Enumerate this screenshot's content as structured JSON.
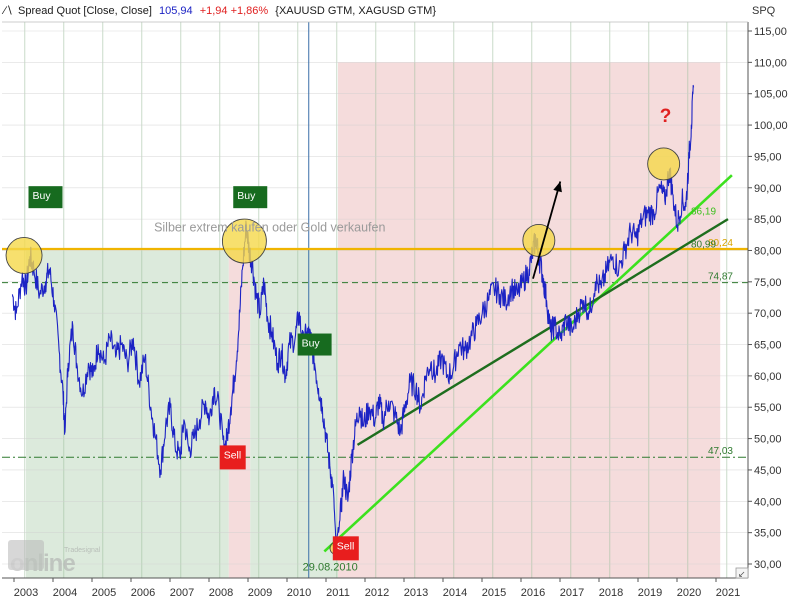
{
  "header": {
    "chart_icon": "line-chart-icon",
    "title": "Spread Quot [Close, Close]",
    "last_value": "105,94",
    "change": "+1,94 +1,86%",
    "symbols": "{XAUUSD GTM, XAGUSD GTM}"
  },
  "axis_unit_label": "SPQ",
  "watermark": {
    "brand_top": "Tradesignal",
    "brand_main": "online"
  },
  "colors": {
    "price_line": "#1c23c4",
    "green_zone": "#d6e6d6",
    "red_zone": "#f3d6d6",
    "buy_label_bg": "#176b1f",
    "sell_label_bg": "#e81e1e",
    "level_line": "#f0b400",
    "trend_light": "#3ce11e",
    "trend_dark": "#1e6e1e",
    "circle_fill": "#f5d84a",
    "question_mark": "#e02020",
    "axis_text": "#333333"
  },
  "chart_data": {
    "type": "line",
    "title": "Spread Quot [Close, Close]",
    "xlabel": "",
    "ylabel": "SPQ",
    "ylim": [
      28,
      118
    ],
    "x_ticks": [
      "2003",
      "2004",
      "2005",
      "2006",
      "2007",
      "2008",
      "2009",
      "2010",
      "2011",
      "2012",
      "2013",
      "2014",
      "2015",
      "2016",
      "2017",
      "2018",
      "2019",
      "2020",
      "2021"
    ],
    "y_ticks": [
      "30,00",
      "35,00",
      "40,00",
      "45,00",
      "50,00",
      "55,00",
      "60,00",
      "65,00",
      "70,00",
      "75,00",
      "80,00",
      "85,00",
      "90,00",
      "95,00",
      "100,00",
      "105,00",
      "110,00",
      "115,00"
    ],
    "grid": true,
    "series": [
      {
        "name": "Spread Quot [Close, Close]",
        "points": [
          [
            2002.65,
            73
          ],
          [
            2002.75,
            70
          ],
          [
            2002.9,
            76
          ],
          [
            2003.0,
            74
          ],
          [
            2003.1,
            79
          ],
          [
            2003.2,
            77
          ],
          [
            2003.35,
            73
          ],
          [
            2003.5,
            75
          ],
          [
            2003.6,
            77
          ],
          [
            2003.72,
            72
          ],
          [
            2003.85,
            64
          ],
          [
            2003.95,
            57
          ],
          [
            2004.0,
            51
          ],
          [
            2004.08,
            62
          ],
          [
            2004.2,
            68
          ],
          [
            2004.3,
            62
          ],
          [
            2004.45,
            57
          ],
          [
            2004.6,
            62
          ],
          [
            2004.72,
            60
          ],
          [
            2004.85,
            65
          ],
          [
            2005.0,
            62
          ],
          [
            2005.15,
            66
          ],
          [
            2005.3,
            63
          ],
          [
            2005.45,
            65
          ],
          [
            2005.6,
            62
          ],
          [
            2005.75,
            66
          ],
          [
            2005.9,
            59
          ],
          [
            2006.05,
            63
          ],
          [
            2006.2,
            55
          ],
          [
            2006.3,
            51
          ],
          [
            2006.45,
            45
          ],
          [
            2006.58,
            52
          ],
          [
            2006.7,
            55
          ],
          [
            2006.82,
            49
          ],
          [
            2006.95,
            47
          ],
          [
            2007.05,
            53
          ],
          [
            2007.18,
            48
          ],
          [
            2007.3,
            50
          ],
          [
            2007.45,
            53
          ],
          [
            2007.6,
            56
          ],
          [
            2007.7,
            53
          ],
          [
            2007.82,
            58
          ],
          [
            2007.95,
            55
          ],
          [
            2008.08,
            48
          ],
          [
            2008.15,
            50
          ],
          [
            2008.25,
            55
          ],
          [
            2008.35,
            60
          ],
          [
            2008.45,
            67
          ],
          [
            2008.55,
            77
          ],
          [
            2008.65,
            84
          ],
          [
            2008.72,
            80
          ],
          [
            2008.8,
            78
          ],
          [
            2008.9,
            73
          ],
          [
            2009.0,
            70
          ],
          [
            2009.1,
            75
          ],
          [
            2009.2,
            69
          ],
          [
            2009.3,
            67
          ],
          [
            2009.45,
            62
          ],
          [
            2009.55,
            64
          ],
          [
            2009.65,
            60
          ],
          [
            2009.75,
            65
          ],
          [
            2009.9,
            66
          ],
          [
            2010.0,
            70
          ],
          [
            2010.1,
            65
          ],
          [
            2010.2,
            67
          ],
          [
            2010.3,
            66
          ],
          [
            2010.4,
            62
          ],
          [
            2010.5,
            58
          ],
          [
            2010.6,
            55
          ],
          [
            2010.7,
            50
          ],
          [
            2010.8,
            45
          ],
          [
            2010.88,
            42
          ],
          [
            2010.95,
            33
          ],
          [
            2011.05,
            37
          ],
          [
            2011.15,
            44
          ],
          [
            2011.25,
            40
          ],
          [
            2011.35,
            47
          ],
          [
            2011.45,
            52
          ],
          [
            2011.55,
            55
          ],
          [
            2011.65,
            52
          ],
          [
            2011.8,
            55
          ],
          [
            2011.95,
            53
          ],
          [
            2012.05,
            56
          ],
          [
            2012.15,
            53
          ],
          [
            2012.3,
            56
          ],
          [
            2012.45,
            54
          ],
          [
            2012.6,
            51
          ],
          [
            2012.72,
            55
          ],
          [
            2012.85,
            59
          ],
          [
            2013.0,
            58
          ],
          [
            2013.12,
            55
          ],
          [
            2013.25,
            60
          ],
          [
            2013.38,
            62
          ],
          [
            2013.5,
            60
          ],
          [
            2013.65,
            63
          ],
          [
            2013.8,
            60
          ],
          [
            2013.95,
            61
          ],
          [
            2014.1,
            65
          ],
          [
            2014.25,
            64
          ],
          [
            2014.4,
            66
          ],
          [
            2014.55,
            68
          ],
          [
            2014.7,
            70
          ],
          [
            2014.85,
            72
          ],
          [
            2015.0,
            74
          ],
          [
            2015.15,
            73
          ],
          [
            2015.3,
            72
          ],
          [
            2015.45,
            74
          ],
          [
            2015.6,
            73
          ],
          [
            2015.75,
            75
          ],
          [
            2015.9,
            77
          ],
          [
            2016.0,
            80
          ],
          [
            2016.08,
            82
          ],
          [
            2016.15,
            79
          ],
          [
            2016.25,
            76
          ],
          [
            2016.35,
            72
          ],
          [
            2016.45,
            67
          ],
          [
            2016.55,
            68
          ],
          [
            2016.7,
            66
          ],
          [
            2016.85,
            69
          ],
          [
            2017.0,
            67
          ],
          [
            2017.15,
            70
          ],
          [
            2017.3,
            72
          ],
          [
            2017.45,
            70
          ],
          [
            2017.6,
            75
          ],
          [
            2017.75,
            74
          ],
          [
            2017.9,
            77
          ],
          [
            2018.05,
            79
          ],
          [
            2018.2,
            77
          ],
          [
            2018.35,
            80
          ],
          [
            2018.5,
            83
          ],
          [
            2018.65,
            82
          ],
          [
            2018.8,
            85
          ],
          [
            2018.95,
            86
          ],
          [
            2019.1,
            86
          ],
          [
            2019.25,
            90
          ],
          [
            2019.38,
            88
          ],
          [
            2019.5,
            93
          ],
          [
            2019.58,
            89
          ],
          [
            2019.7,
            84
          ],
          [
            2019.82,
            88
          ],
          [
            2019.92,
            87
          ],
          [
            2020.0,
            95
          ],
          [
            2020.06,
            100
          ],
          [
            2020.12,
            106
          ]
        ]
      }
    ],
    "trend_lines": [
      {
        "name": "light-green-trendline",
        "from": [
          2010.65,
          32
        ],
        "to": [
          2021.1,
          92
        ]
      },
      {
        "name": "dark-green-trendline",
        "from": [
          2011.5,
          49
        ],
        "to": [
          2021.0,
          85
        ]
      }
    ],
    "horizontal_levels": [
      {
        "value": 80.24,
        "label": "80,24",
        "style": "solid-yellow"
      },
      {
        "value": 74.87,
        "label": "74,87",
        "style": "dashed-green"
      },
      {
        "value": 47.03,
        "label": "47,03",
        "style": "dashdot-green"
      }
    ],
    "line_labels": [
      {
        "label": "86,19",
        "x": 2020.0,
        "y": 86.2
      },
      {
        "label": "80,99",
        "x": 2020.0,
        "y": 80.99
      }
    ],
    "zones": [
      {
        "type": "green",
        "from": 2003.0,
        "to": 2008.2,
        "y": [
          28,
          80
        ]
      },
      {
        "type": "red",
        "from": 2008.2,
        "to": 2008.75,
        "y": [
          28,
          80
        ]
      },
      {
        "type": "green",
        "from": 2008.75,
        "to": 2011.0,
        "y": [
          28,
          80
        ]
      },
      {
        "type": "red",
        "from": 2011.0,
        "to": 2020.8,
        "y": [
          28,
          110
        ]
      }
    ],
    "signals": [
      {
        "label": "Buy",
        "kind": "buy",
        "x": 2003.5,
        "y": 88.5
      },
      {
        "label": "Buy",
        "kind": "buy",
        "x": 2008.75,
        "y": 88.5
      },
      {
        "label": "Buy",
        "kind": "buy",
        "x": 2010.4,
        "y": 65.0
      },
      {
        "label": "Sell",
        "kind": "sell",
        "x": 2008.3,
        "y": 47.0
      },
      {
        "label": "Sell",
        "kind": "sell",
        "x": 2011.2,
        "y": 32.5
      }
    ],
    "highlight_circles": [
      {
        "x": 2002.95,
        "y": 79.2,
        "r": 18
      },
      {
        "x": 2008.6,
        "y": 81.5,
        "r": 22
      },
      {
        "x": 2016.15,
        "y": 81.6,
        "r": 16
      },
      {
        "x": 2019.35,
        "y": 93.8,
        "r": 16
      },
      {
        "x": 2010.95,
        "y": 32.5,
        "r": 6
      }
    ],
    "annotations": [
      {
        "text": "Silber extrem kaufen oder Gold verkaufen",
        "x": 2009.25,
        "y": 83.0
      },
      {
        "text": "?",
        "x": 2019.4,
        "y": 100.5
      },
      {
        "text": "29.08.2010",
        "x": 2010.8,
        "y": 29.0
      }
    ],
    "arrow": {
      "from": [
        2016.0,
        75.5
      ],
      "to": [
        2016.7,
        91.0
      ]
    },
    "cursor_x": 2010.25
  }
}
